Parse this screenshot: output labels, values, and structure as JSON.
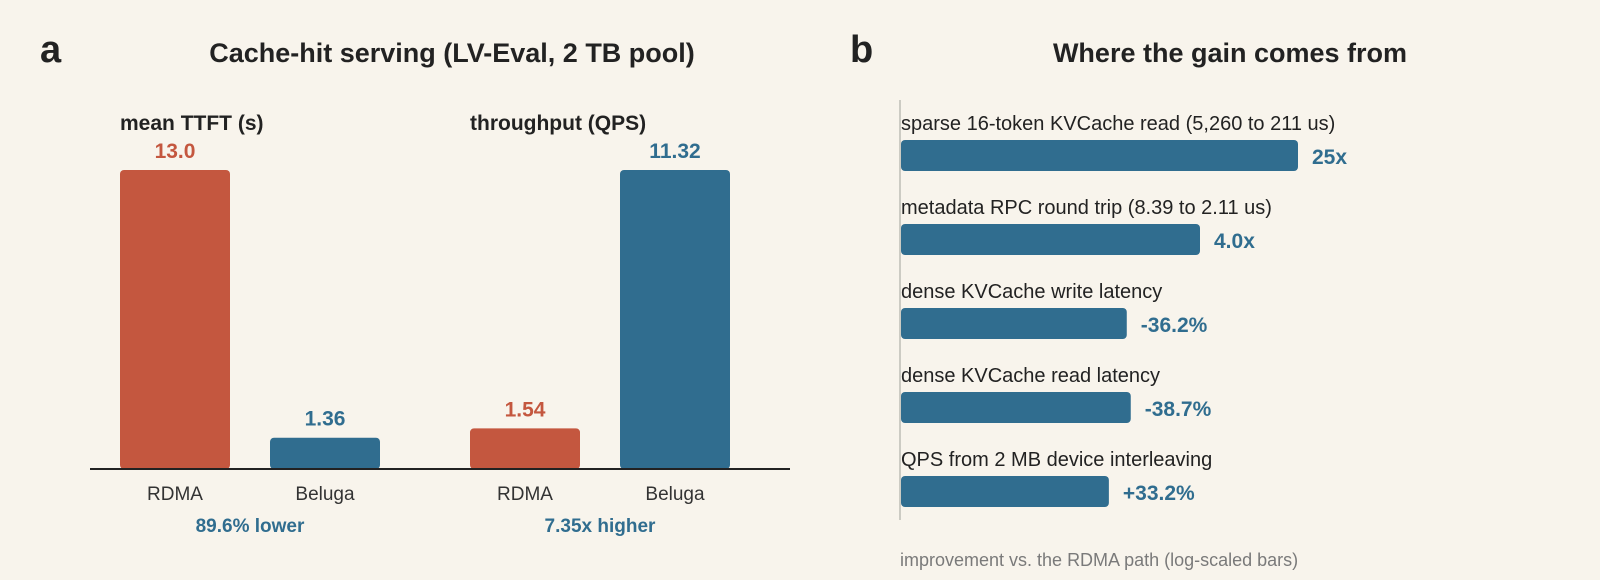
{
  "colors": {
    "rdma": "#c4573f",
    "beluga": "#306d8f",
    "axis": "#222222",
    "divider": "#bdbdb5"
  },
  "chart_data": [
    {
      "type": "bar",
      "panel": "a",
      "title": "Cache-hit serving (LV-Eval, 2 TB pool)",
      "subplots": [
        {
          "subtitle": "mean TTFT (s)",
          "categories": [
            "RDMA",
            "Beluga"
          ],
          "values": [
            13.0,
            1.36
          ],
          "value_labels": [
            "13.0",
            "1.36"
          ],
          "ylim": [
            0,
            13.0
          ],
          "note": "89.6% lower"
        },
        {
          "subtitle": "throughput (QPS)",
          "categories": [
            "RDMA",
            "Beluga"
          ],
          "values": [
            1.54,
            11.32
          ],
          "value_labels": [
            "1.54",
            "11.32"
          ],
          "ylim": [
            0,
            11.32
          ],
          "note": "7.35x higher"
        }
      ]
    },
    {
      "type": "bar",
      "orientation": "horizontal",
      "panel": "b",
      "title": "Where the gain comes from",
      "scale": "log",
      "xlabel": "improvement vs. the RDMA path (log-scaled bars)",
      "categories": [
        "sparse 16-token KVCache read (5,260 to 211 us)",
        "metadata RPC round trip (8.39 to 2.11 us)",
        "dense KVCache write latency",
        "dense KVCache read latency",
        "QPS from 2 MB device interleaving"
      ],
      "values": [
        25,
        4.0,
        1.567,
        1.631,
        1.332
      ],
      "value_labels": [
        "25x",
        "4.0x",
        "-36.2%",
        "-38.7%",
        "+33.2%"
      ]
    }
  ]
}
